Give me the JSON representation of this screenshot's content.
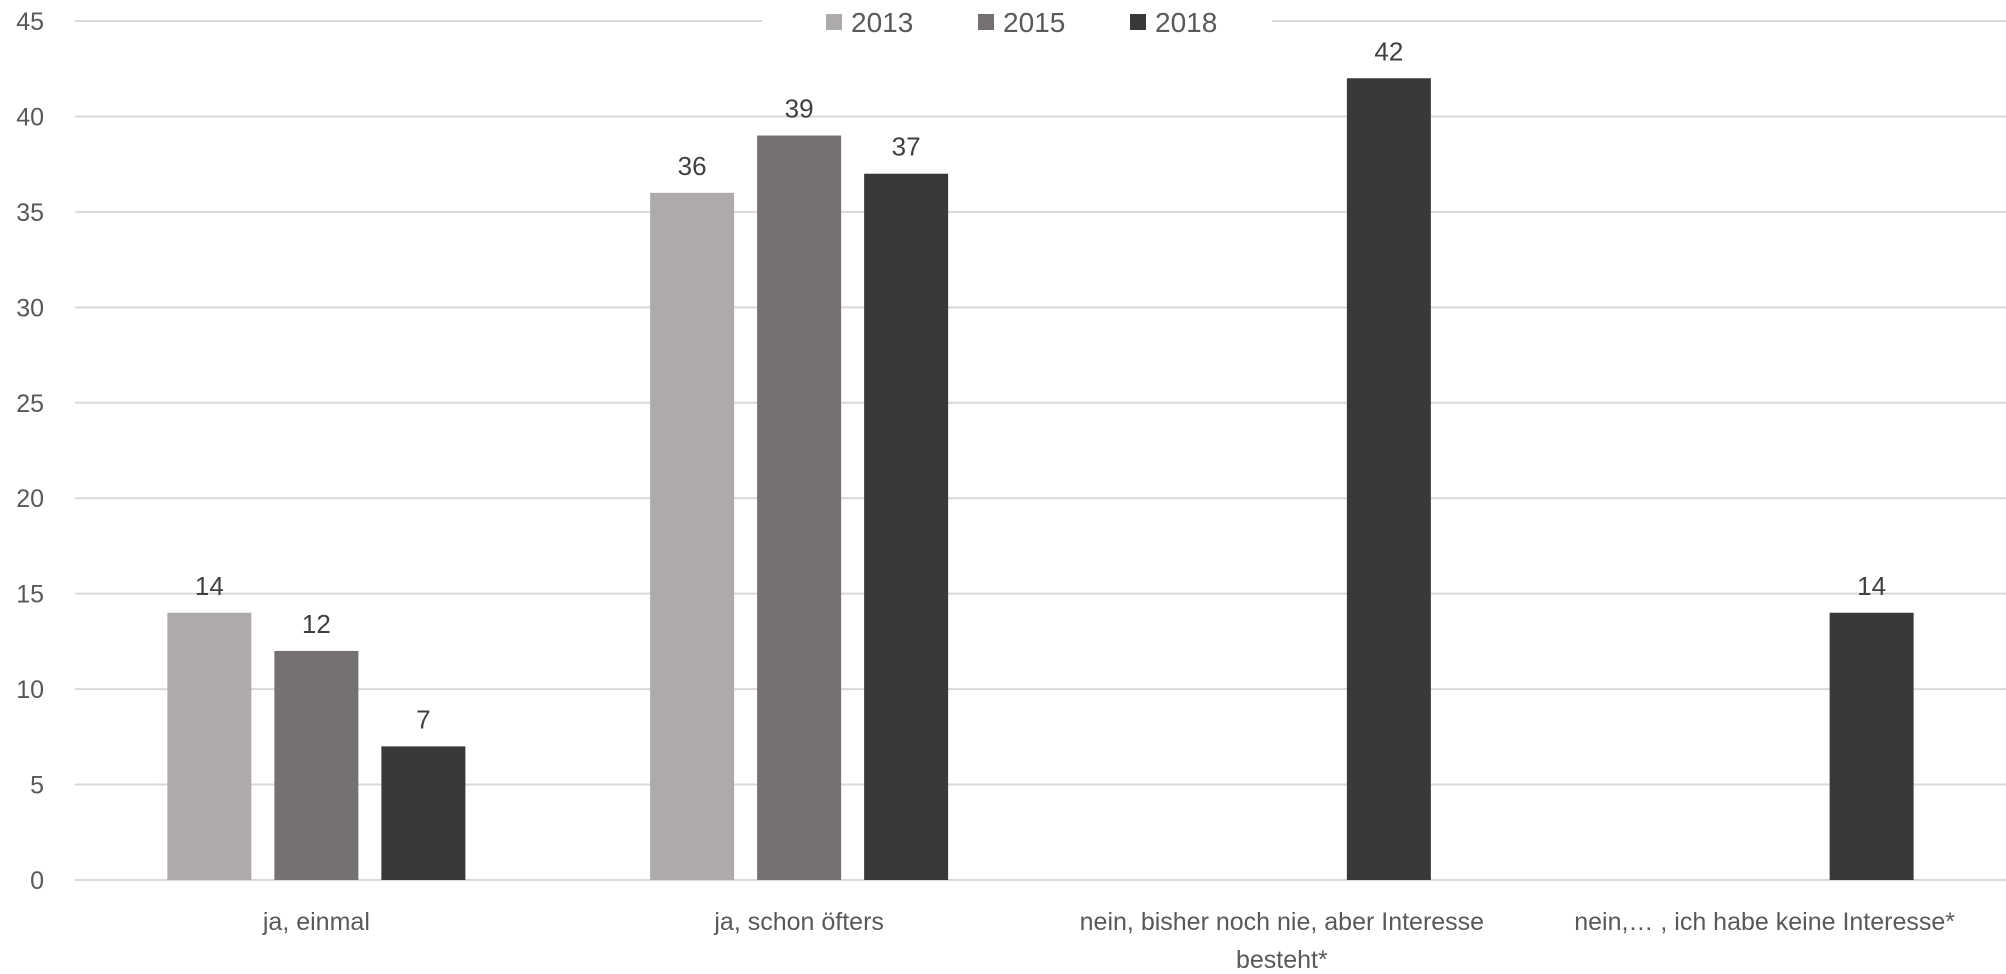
{
  "chart_data": {
    "type": "bar",
    "categories": [
      [
        "ja, einmal"
      ],
      [
        "ja, schon öfters"
      ],
      [
        "nein, bisher noch nie, aber Interesse",
        "besteht*"
      ],
      [
        "nein,… , ich habe keine Interesse*"
      ]
    ],
    "series": [
      {
        "name": "2013",
        "color": "#aeaaaa",
        "values": [
          14,
          36,
          null,
          null
        ]
      },
      {
        "name": "2015",
        "color": "#767171",
        "values": [
          12,
          39,
          null,
          null
        ]
      },
      {
        "name": "2018",
        "color": "#3a3838",
        "values": [
          7,
          37,
          42,
          14
        ]
      }
    ],
    "ylim": [
      0,
      45
    ],
    "yticks": [
      0,
      5,
      10,
      15,
      20,
      25,
      30,
      35,
      40,
      45
    ],
    "grid": true,
    "legend_position": "top-center",
    "title": "",
    "xlabel": "",
    "ylabel": ""
  }
}
